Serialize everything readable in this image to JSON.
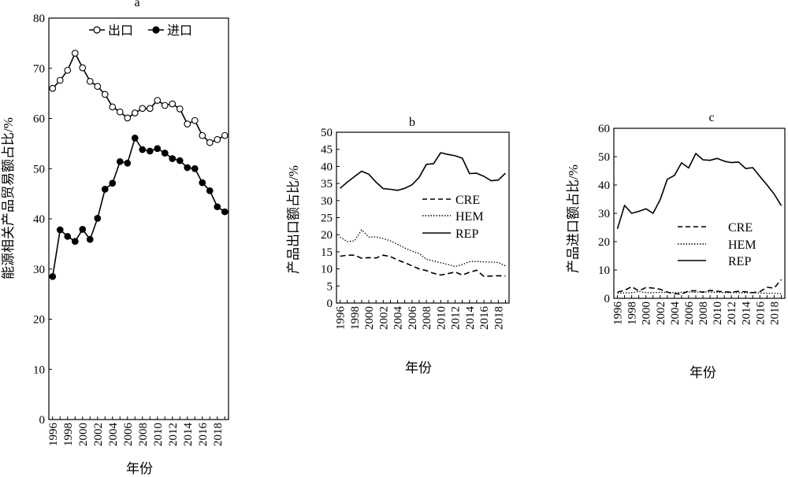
{
  "chart_data": [
    {
      "type": "line",
      "title": "a",
      "xlabel": "年份",
      "ylabel": "能源相关产品贸易额占比/%",
      "ylim": [
        0,
        80
      ],
      "yticks": [
        0,
        10,
        20,
        30,
        40,
        50,
        60,
        70,
        80
      ],
      "xticks": [
        1996,
        1998,
        2000,
        2002,
        2004,
        2006,
        2008,
        2010,
        2012,
        2014,
        2016,
        2018
      ],
      "legend_position": "top",
      "x": [
        1996,
        1997,
        1998,
        1999,
        2000,
        2001,
        2002,
        2003,
        2004,
        2005,
        2006,
        2007,
        2008,
        2009,
        2010,
        2011,
        2012,
        2013,
        2014,
        2015,
        2016,
        2017,
        2018,
        2019
      ],
      "series": [
        {
          "name": "出口",
          "marker": "open",
          "color": "#000000",
          "values": [
            66,
            67.6,
            69.6,
            73,
            70.1,
            67.4,
            66.4,
            64.8,
            62.3,
            61.3,
            60.1,
            61.1,
            62,
            62,
            63.6,
            62.6,
            62.9,
            61.9,
            58.9,
            59.6,
            56.6,
            55.2,
            55.8,
            56.6
          ]
        },
        {
          "name": "进口",
          "marker": "filled",
          "color": "#000000",
          "values": [
            28.5,
            37.8,
            36.5,
            35.5,
            37.9,
            35.9,
            40.1,
            45.9,
            47.1,
            51.4,
            51.1,
            56.1,
            53.8,
            53.5,
            54,
            53.1,
            52,
            51.6,
            50.2,
            50,
            47.2,
            45.6,
            42.4,
            41.4
          ]
        }
      ]
    },
    {
      "type": "line",
      "title": "b",
      "xlabel": "年份",
      "ylabel": "产品出口额占比/%",
      "ylim": [
        0,
        50
      ],
      "yticks": [
        0,
        5,
        10,
        15,
        20,
        25,
        30,
        35,
        40,
        45,
        50
      ],
      "xticks": [
        1996,
        1998,
        2000,
        2002,
        2004,
        2006,
        2008,
        2010,
        2012,
        2014,
        2016,
        2018
      ],
      "legend_position": "center-left",
      "x": [
        1996,
        1997,
        1998,
        1999,
        2000,
        2001,
        2002,
        2003,
        2004,
        2005,
        2006,
        2007,
        2008,
        2009,
        2010,
        2011,
        2012,
        2013,
        2014,
        2015,
        2016,
        2017,
        2018,
        2019
      ],
      "series": [
        {
          "name": "CRE",
          "dash": "dashed",
          "values": [
            13.7,
            14,
            14,
            13.1,
            13.3,
            13.2,
            14,
            13.6,
            12.6,
            11.8,
            10.9,
            10,
            9.5,
            8.7,
            8.2,
            8.6,
            9.1,
            8.2,
            9,
            9.6,
            7.8,
            7.9,
            8,
            7.9
          ]
        },
        {
          "name": "HEM",
          "dash": "dotted",
          "values": [
            19.3,
            18,
            18.2,
            21.4,
            19.3,
            19.4,
            18.9,
            18.2,
            17.2,
            16.1,
            15.2,
            14.5,
            12.8,
            12.3,
            11.8,
            11.3,
            10.7,
            11.3,
            12.1,
            12.2,
            12,
            12,
            11.9,
            10.9
          ]
        },
        {
          "name": "REP",
          "dash": "solid",
          "values": [
            33.6,
            35.4,
            37,
            38.6,
            37.7,
            35.4,
            33.5,
            33.3,
            33,
            33.6,
            34.6,
            36.8,
            40.6,
            40.8,
            44,
            43.5,
            43.1,
            42.4,
            37.9,
            38,
            37.1,
            35.8,
            36,
            38
          ]
        }
      ]
    },
    {
      "type": "line",
      "title": "c",
      "xlabel": "年份",
      "ylabel": "产品进口额占比/%",
      "ylim": [
        0,
        60
      ],
      "yticks": [
        0,
        10,
        20,
        30,
        40,
        50,
        60
      ],
      "xticks": [
        1996,
        1998,
        2000,
        2002,
        2004,
        2006,
        2008,
        2010,
        2012,
        2014,
        2016,
        2018
      ],
      "legend_position": "center-left",
      "x": [
        1996,
        1997,
        1998,
        1999,
        2000,
        2001,
        2002,
        2003,
        2004,
        2005,
        2006,
        2007,
        2008,
        2009,
        2010,
        2011,
        2012,
        2013,
        2014,
        2015,
        2016,
        2017,
        2018,
        2019
      ],
      "series": [
        {
          "name": "CRE",
          "dash": "dashed",
          "values": [
            2.2,
            2.8,
            4.1,
            2.6,
            3.8,
            3.6,
            3.2,
            2.2,
            1.6,
            1.5,
            2.6,
            2.7,
            2.1,
            2.8,
            2.5,
            2.3,
            2.2,
            2.5,
            2.3,
            2,
            2.4,
            3.9,
            3.6,
            6.6
          ]
        },
        {
          "name": "HEM",
          "dash": "dotted",
          "values": [
            1.8,
            1.9,
            2,
            2.4,
            2,
            2,
            2.1,
            2.1,
            2,
            2.1,
            2.2,
            2.1,
            2.3,
            2.2,
            2.1,
            2,
            2,
            2,
            2,
            2,
            1.9,
            1.8,
            1.8,
            1.6
          ]
        },
        {
          "name": "REP",
          "dash": "solid",
          "values": [
            24.5,
            32.8,
            30,
            30.7,
            31.6,
            30,
            34.8,
            42,
            43.4,
            47.8,
            46,
            51.1,
            48.9,
            48.7,
            49.4,
            48.4,
            47.9,
            48.1,
            45.8,
            46.1,
            43,
            40,
            36.8,
            32.7
          ]
        }
      ]
    }
  ]
}
